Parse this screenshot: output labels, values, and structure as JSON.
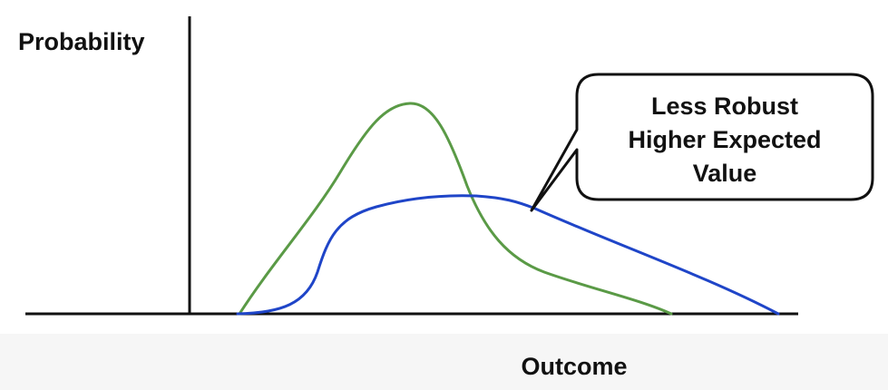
{
  "axes": {
    "y_label": "Probability",
    "x_label": "Outcome"
  },
  "callout": {
    "lines": [
      "Less Robust",
      "Higher Expected",
      "Value"
    ]
  },
  "curves": [
    {
      "id": "green-curve",
      "color": "#5a9a46"
    },
    {
      "id": "blue-curve",
      "color": "#1f45c8"
    }
  ],
  "colors": {
    "axis": "#111111",
    "callout_border": "#111111",
    "callout_fill": "#ffffff"
  }
}
